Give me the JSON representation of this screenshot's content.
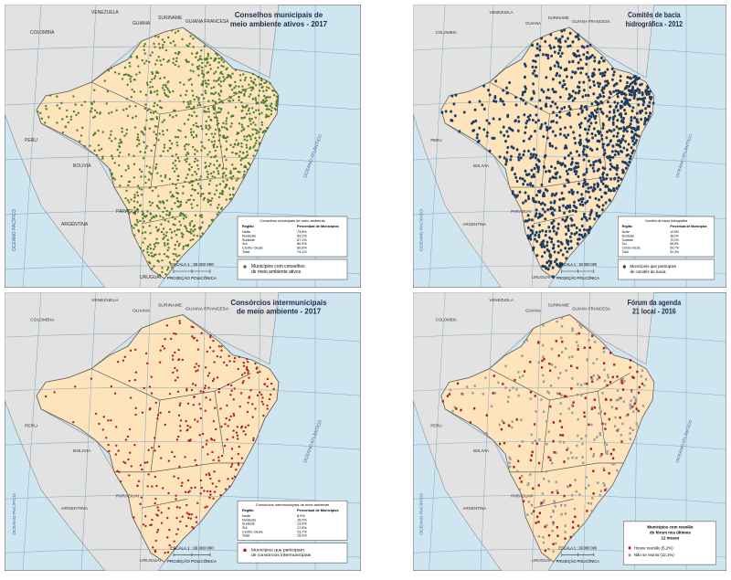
{
  "panels": [
    {
      "title": [
        "Conselhos municipais de",
        "meio ambiente ativos - 2017"
      ],
      "table": {
        "title": "Conselhos municipais de meio ambiente",
        "header": [
          "Região",
          "Percentual de Municípios"
        ],
        "rows": [
          [
            "Norte",
            "73,8%"
          ],
          [
            "Nordeste",
            "59,2%"
          ],
          [
            "Sudeste",
            "87,1%"
          ],
          [
            "Sul",
            "80,9%"
          ],
          [
            "Centro-Oeste",
            "80,6%"
          ],
          [
            "Total",
            "74,1%"
          ]
        ]
      },
      "legend": [
        "Municípios com conselhos",
        "de meio ambiente ativos"
      ]
    },
    {
      "title": [
        "Comitês de bacia",
        "hidrográfica - 2012"
      ],
      "table": {
        "title": "Comitês de bacia hidrográfica",
        "header": [
          "Região",
          "Percentual de Municípios"
        ],
        "rows": [
          [
            "Norte",
            "10,8%"
          ],
          [
            "Nordeste",
            "38,0%"
          ],
          [
            "Sudeste",
            "70,2%"
          ],
          [
            "Sul",
            "66,9%"
          ],
          [
            "Centro-Oeste",
            "50,7%"
          ],
          [
            "Total",
            "52,3%"
          ]
        ]
      },
      "legend": [
        "Municípios que participam",
        "de comitês de bacia"
      ]
    },
    {
      "title": [
        "Consórcios intermunicipais",
        "de meio ambiente - 2017"
      ],
      "table": {
        "title": "Consórcios intermunicipais de meio ambiente",
        "header": [
          "Região",
          "Percentual de Municípios"
        ],
        "rows": [
          [
            "Norte",
            "8,0%"
          ],
          [
            "Nordeste",
            "16,9%"
          ],
          [
            "Sudeste",
            "13,5%"
          ],
          [
            "Sul",
            "17,8%"
          ],
          [
            "Centro-Oeste",
            "23,7%"
          ],
          [
            "Total",
            "15,9%"
          ]
        ]
      },
      "legend": [
        "Municípios que participam",
        "de consórcios intermunicipais"
      ]
    },
    {
      "title": [
        "Fórum da agenda",
        "21 local - 2016"
      ],
      "legend_title": [
        "Municípios com reunião",
        "do fórum nos últimos",
        "12 meses"
      ],
      "legend": [
        "Houve reunião (5,2%)",
        "Não se reuniu (12,1%)"
      ]
    }
  ],
  "scale": "ESCALA 1 : 30 000 000",
  "projection": "PROJEÇÃO POLICÔNICA",
  "countries": [
    "VENEZUELA",
    "COLOMBIA",
    "PERU",
    "BOLIVIA",
    "PARAGUAI",
    "ARGENTINA",
    "URUGUAI",
    "GUIANA",
    "SURINAME",
    "GUIANA FRANCESA"
  ],
  "oceans": [
    "OCEANO PACÍFICO",
    "OCEANO ATLÂNTICO"
  ]
}
